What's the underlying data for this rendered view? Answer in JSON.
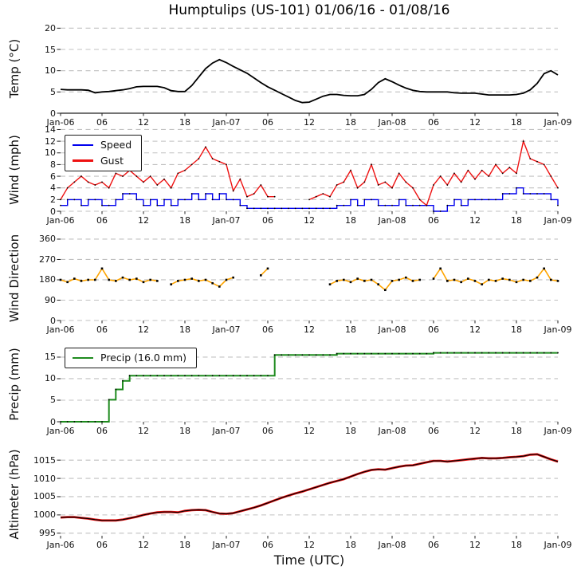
{
  "title": "Humptulips (US-101) 01/06/16 - 01/08/16",
  "time_axis": {
    "label": "Time (UTC)",
    "tick_labels": [
      "Jan-06",
      "06",
      "12",
      "18",
      "Jan-07",
      "06",
      "12",
      "18",
      "Jan-08",
      "06",
      "12",
      "18",
      "Jan-09"
    ],
    "tick_hours": [
      0,
      6,
      12,
      18,
      24,
      30,
      36,
      42,
      48,
      54,
      60,
      66,
      72
    ],
    "range_hours": [
      0,
      72
    ],
    "sample_interval_hours": 1
  },
  "chart_data": [
    {
      "id": "temp",
      "type": "line",
      "ylabel": "Temp (°C)",
      "ylim": [
        0,
        21
      ],
      "yticks": [
        0,
        5,
        10,
        15,
        20
      ],
      "grid": "horizontal-dashed",
      "series": [
        {
          "name": "Temperature",
          "color": "#000000",
          "width": 1.8,
          "step": false,
          "marker": null,
          "values": [
            5.6,
            5.5,
            5.5,
            5.5,
            5.4,
            4.8,
            5.0,
            5.1,
            5.3,
            5.5,
            5.8,
            6.2,
            6.3,
            6.3,
            6.3,
            6.0,
            5.3,
            5.1,
            5.1,
            6.5,
            8.5,
            10.5,
            11.8,
            12.6,
            11.9,
            11.0,
            10.2,
            9.4,
            8.3,
            7.2,
            6.2,
            5.4,
            4.6,
            3.8,
            3.0,
            2.5,
            2.6,
            3.3,
            4.0,
            4.4,
            4.4,
            4.2,
            4.1,
            4.1,
            4.4,
            5.6,
            7.2,
            8.1,
            7.4,
            6.6,
            5.9,
            5.4,
            5.1,
            5.0,
            5.0,
            5.0,
            5.0,
            4.8,
            4.7,
            4.7,
            4.7,
            4.5,
            4.3,
            4.3,
            4.3,
            4.3,
            4.4,
            4.7,
            5.5,
            7.0,
            9.3,
            10.0,
            9.0
          ]
        }
      ]
    },
    {
      "id": "wind",
      "type": "line",
      "ylabel": "Wind (mph)",
      "ylim": [
        0,
        14.2
      ],
      "yticks": [
        0,
        2,
        4,
        6,
        8,
        10,
        12,
        14
      ],
      "grid": "horizontal-dashed",
      "legend": {
        "position": "upper-left",
        "entries": [
          {
            "label": "Speed",
            "color": "#0000ee"
          },
          {
            "label": "Gust",
            "color": "#ee1111"
          }
        ]
      },
      "series": [
        {
          "name": "Speed",
          "color": "#0000ee",
          "width": 1.4,
          "step": true,
          "marker": "dot",
          "values": [
            1,
            2,
            2,
            1,
            2,
            2,
            1,
            1,
            2,
            3,
            3,
            2,
            1,
            2,
            1,
            2,
            1,
            2,
            2,
            3,
            2,
            3,
            2,
            3,
            2,
            2,
            1,
            0.5,
            0.5,
            0.5,
            0.5,
            0.5,
            0.5,
            0.5,
            0.5,
            0.5,
            0.5,
            0.5,
            0.5,
            0.5,
            1,
            1,
            2,
            1,
            2,
            2,
            1,
            1,
            1,
            2,
            1,
            1,
            1,
            1,
            0,
            0,
            1,
            2,
            1,
            2,
            2,
            2,
            2,
            2,
            3,
            3,
            4,
            3,
            3,
            3,
            3,
            2,
            1
          ]
        },
        {
          "name": "Gust",
          "color": "#ee1111",
          "width": 1.4,
          "step": false,
          "marker": "dot",
          "values": [
            2,
            4,
            5,
            6,
            5,
            4.5,
            5,
            4,
            6.5,
            6,
            7,
            6,
            5,
            6,
            4.5,
            5.5,
            4,
            6.5,
            7,
            8,
            9,
            11,
            9,
            8.5,
            8,
            3.5,
            5.5,
            2.5,
            3,
            4.5,
            2.5,
            2.5,
            null,
            null,
            null,
            null,
            2,
            2.5,
            3,
            2.5,
            4.5,
            5,
            7,
            4,
            5,
            8,
            4.5,
            5,
            4,
            6.5,
            5,
            4,
            2,
            1,
            4.5,
            6,
            4.5,
            6.5,
            5,
            7,
            5.5,
            7,
            6,
            8,
            6.5,
            7.5,
            6.5,
            12,
            9,
            8.5,
            8,
            6,
            4
          ]
        }
      ]
    },
    {
      "id": "dir",
      "type": "line",
      "ylabel": "Wind Direction",
      "ylim": [
        0,
        374
      ],
      "yticks": [
        0,
        90,
        180,
        270,
        360
      ],
      "grid": "horizontal-dashed",
      "series": [
        {
          "name": "Direction",
          "color": "#ffa500",
          "width": 1.6,
          "step": false,
          "marker": "square",
          "values": [
            180,
            170,
            185,
            175,
            180,
            180,
            230,
            180,
            175,
            190,
            180,
            185,
            170,
            180,
            175,
            null,
            160,
            175,
            180,
            185,
            175,
            180,
            165,
            150,
            180,
            190,
            null,
            null,
            null,
            200,
            230,
            null,
            null,
            null,
            null,
            null,
            null,
            null,
            null,
            160,
            175,
            180,
            170,
            185,
            175,
            180,
            160,
            135,
            175,
            180,
            190,
            175,
            180,
            null,
            185,
            230,
            175,
            180,
            170,
            185,
            175,
            160,
            180,
            175,
            185,
            180,
            170,
            180,
            175,
            190,
            230,
            180,
            175
          ]
        }
      ]
    },
    {
      "id": "precip",
      "type": "line",
      "ylabel": "Precip (mm)",
      "ylim": [
        0,
        17.4
      ],
      "yticks": [
        0,
        5,
        10,
        15
      ],
      "grid": "horizontal-dashed",
      "legend": {
        "position": "upper-left",
        "entries": [
          {
            "label": "Precip (16.0 mm)",
            "color": "#1e8b1e"
          }
        ]
      },
      "series": [
        {
          "name": "Precip",
          "color": "#1e8b1e",
          "width": 2,
          "step": true,
          "marker": "dot",
          "total_mm": 16.0,
          "values": [
            0,
            0,
            0,
            0,
            0,
            0,
            0,
            5.1,
            7.5,
            9.5,
            10.7,
            10.7,
            10.7,
            10.7,
            10.7,
            10.7,
            10.7,
            10.7,
            10.7,
            10.7,
            10.7,
            10.7,
            10.7,
            10.7,
            10.7,
            10.7,
            10.7,
            10.7,
            10.7,
            10.7,
            10.7,
            15.5,
            15.5,
            15.5,
            15.5,
            15.5,
            15.5,
            15.5,
            15.5,
            15.5,
            15.8,
            15.8,
            15.8,
            15.8,
            15.8,
            15.8,
            15.8,
            15.8,
            15.8,
            15.8,
            15.8,
            15.8,
            15.8,
            15.8,
            16.0,
            16.0,
            16.0,
            16.0,
            16.0,
            16.0,
            16.0,
            16.0,
            16.0,
            16.0,
            16.0,
            16.0,
            16.0,
            16.0,
            16.0,
            16.0,
            16.0,
            16.0,
            16.0
          ]
        }
      ]
    },
    {
      "id": "alt",
      "type": "line",
      "ylabel": "Altimeter (hPa)",
      "ylim": [
        994.3,
        1017.0
      ],
      "yticks": [
        995,
        1000,
        1005,
        1010,
        1015
      ],
      "grid": "horizontal-dashed",
      "series": [
        {
          "name": "Altimeter",
          "color": "#ee1111",
          "core_color": "#000000",
          "width": 2.8,
          "step": false,
          "marker": null,
          "outline": true,
          "values": [
            999.3,
            999.4,
            999.4,
            999.2,
            999.0,
            998.7,
            998.5,
            998.5,
            998.5,
            998.7,
            999.1,
            999.5,
            1000.0,
            1000.4,
            1000.7,
            1000.8,
            1000.8,
            1000.7,
            1001.1,
            1001.3,
            1001.4,
            1001.3,
            1000.8,
            1000.4,
            1000.3,
            1000.5,
            1001.0,
            1001.5,
            1002.0,
            1002.6,
            1003.3,
            1004.0,
            1004.7,
            1005.3,
            1005.9,
            1006.4,
            1007.0,
            1007.6,
            1008.2,
            1008.8,
            1009.3,
            1009.8,
            1010.5,
            1011.2,
            1011.8,
            1012.3,
            1012.5,
            1012.4,
            1012.8,
            1013.2,
            1013.5,
            1013.6,
            1014.0,
            1014.4,
            1014.8,
            1014.8,
            1014.6,
            1014.8,
            1015.0,
            1015.2,
            1015.4,
            1015.6,
            1015.5,
            1015.5,
            1015.6,
            1015.8,
            1015.9,
            1016.1,
            1016.5,
            1016.6,
            1015.9,
            1015.2,
            1014.6
          ]
        }
      ]
    }
  ]
}
